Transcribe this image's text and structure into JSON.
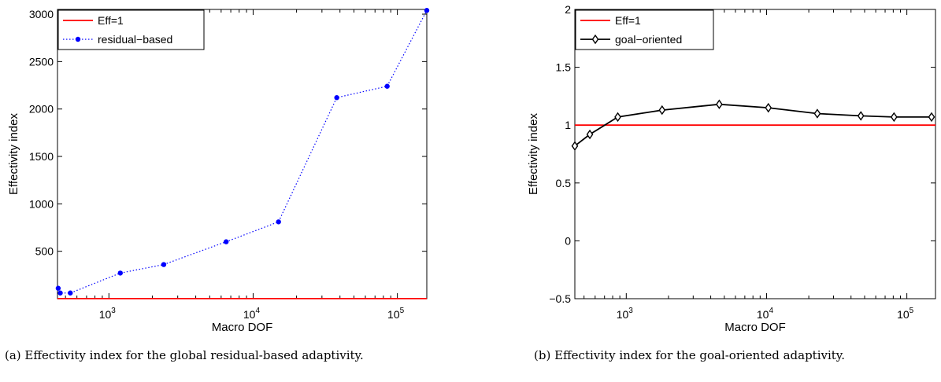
{
  "chart_data": [
    {
      "type": "line",
      "xlabel": "Macro DOF",
      "ylabel": "Effectivity index",
      "xscale": "log",
      "xlim": [
        440,
        160000
      ],
      "ylim": [
        0,
        3050
      ],
      "xticks": [
        {
          "value": 1000,
          "base": "10",
          "exp": "3"
        },
        {
          "value": 10000,
          "base": "10",
          "exp": "4"
        },
        {
          "value": 100000,
          "base": "10",
          "exp": "5"
        }
      ],
      "yticks": [
        500,
        1000,
        1500,
        2000,
        2500,
        3000
      ],
      "legend_position": "top-left",
      "series": [
        {
          "name": "Eff=1",
          "color": "#ff0000",
          "style": "solid",
          "marker": "none",
          "x": [
            440,
            160000
          ],
          "y": [
            1,
            1
          ]
        },
        {
          "name": "residual-based",
          "color": "#0000ff",
          "style": "dotted",
          "marker": "dot",
          "x": [
            445,
            460,
            540,
            1200,
            2400,
            6500,
            15000,
            38000,
            85000,
            160000
          ],
          "y": [
            110,
            60,
            60,
            270,
            360,
            600,
            810,
            2120,
            2240,
            3040
          ]
        }
      ],
      "caption": "(a) Effectivity index for the global residual-based adaptivity."
    },
    {
      "type": "line",
      "xlabel": "Macro DOF",
      "ylabel": "Effectivity index",
      "xscale": "log",
      "xlim": [
        430,
        160000
      ],
      "ylim": [
        -0.5,
        2
      ],
      "xticks": [
        {
          "value": 1000,
          "base": "10",
          "exp": "3"
        },
        {
          "value": 10000,
          "base": "10",
          "exp": "4"
        },
        {
          "value": 100000,
          "base": "10",
          "exp": "5"
        }
      ],
      "yticks": [
        "-0.5",
        "0",
        "0.5",
        "1",
        "1.5",
        "2"
      ],
      "legend_position": "top-left",
      "series": [
        {
          "name": "Eff=1",
          "color": "#ff0000",
          "style": "solid",
          "marker": "none",
          "x": [
            430,
            160000
          ],
          "y": [
            1,
            1
          ]
        },
        {
          "name": "goal-oriented",
          "color": "#000000",
          "style": "solid",
          "marker": "diamond",
          "x": [
            430,
            550,
            870,
            1800,
            4600,
            10300,
            23000,
            47000,
            81000,
            150000
          ],
          "y": [
            0.82,
            0.92,
            1.07,
            1.13,
            1.18,
            1.15,
            1.1,
            1.08,
            1.07,
            1.07
          ]
        }
      ],
      "caption": "(b) Effectivity index for the goal-oriented adaptivity."
    }
  ]
}
